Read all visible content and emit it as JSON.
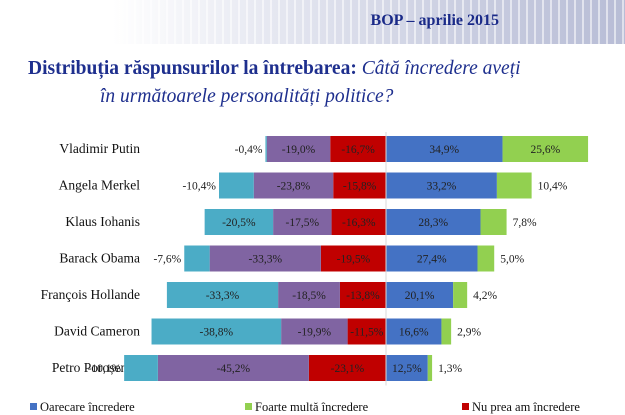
{
  "header": {
    "report_tag": "BOP – aprilie 2015",
    "title_bold": "Distribuția răspunsurilor la întrebarea:",
    "question_part1": "Câtă încredere aveți",
    "question_part2": "în următoarele personalități politice?"
  },
  "colors": {
    "somewhat_trust": "#4472c4",
    "much_trust": "#92d050",
    "not_much_trust": "#c00000",
    "neg_purple": "#8064a2",
    "neg_cyan": "#4bacc6"
  },
  "chart_data": {
    "type": "bar",
    "orientation": "horizontal-diverging",
    "title": "Distribuția răspunsurilor la întrebarea: Câtă încredere aveți în următoarele personalități politice?",
    "categories": [
      "Vladimir Putin",
      "Angela Merkel",
      "Klaus Iohanis",
      "Barack Obama",
      "François Hollande",
      "David Cameron",
      "Petro Poroșenco"
    ],
    "series": [
      {
        "name": "Oarecare încredere",
        "side": "positive",
        "color": "#4472c4",
        "values": [
          34.9,
          33.2,
          28.3,
          27.4,
          20.1,
          16.6,
          12.5
        ],
        "labels": [
          "34,9%",
          "33,2%",
          "28,3%",
          "27,4%",
          "20,1%",
          "16,6%",
          "12,5%"
        ]
      },
      {
        "name": "Foarte multă încredere",
        "side": "positive",
        "color": "#92d050",
        "values": [
          25.6,
          10.4,
          7.8,
          5.0,
          4.2,
          2.9,
          1.3
        ],
        "labels": [
          "25,6%",
          "10,4%",
          "7,8%",
          "5,0%",
          "4,2%",
          "2,9%",
          "1,3%"
        ]
      },
      {
        "name": "Nu prea am încredere",
        "side": "negative",
        "color": "#c00000",
        "values": [
          -16.7,
          -15.8,
          -16.3,
          -19.5,
          -13.8,
          -11.5,
          -23.1
        ],
        "labels": [
          "-16,7%",
          "-15,8%",
          "-16,3%",
          "-19,5%",
          "-13,8%",
          "-11,5%",
          "-23,1%"
        ]
      },
      {
        "side": "negative",
        "color": "#8064a2",
        "values": [
          -19.0,
          -23.8,
          -17.5,
          -33.3,
          -18.5,
          -19.9,
          -45.2
        ],
        "labels": [
          "-19,0%",
          "-23,8%",
          "-17,5%",
          "-33,3%",
          "-18,5%",
          "-19,9%",
          "-45,2%"
        ]
      },
      {
        "side": "negative",
        "color": "#4bacc6",
        "values": [
          -0.4,
          -10.4,
          -20.5,
          -7.6,
          -33.3,
          -38.8,
          -10.1
        ],
        "labels": [
          "-0,4%",
          "-10,4%",
          "-20,5%",
          "-7,6%",
          "-33,3%",
          "-38,8%",
          "-10,1%"
        ]
      }
    ],
    "legend_position": "bottom",
    "grid": false
  }
}
